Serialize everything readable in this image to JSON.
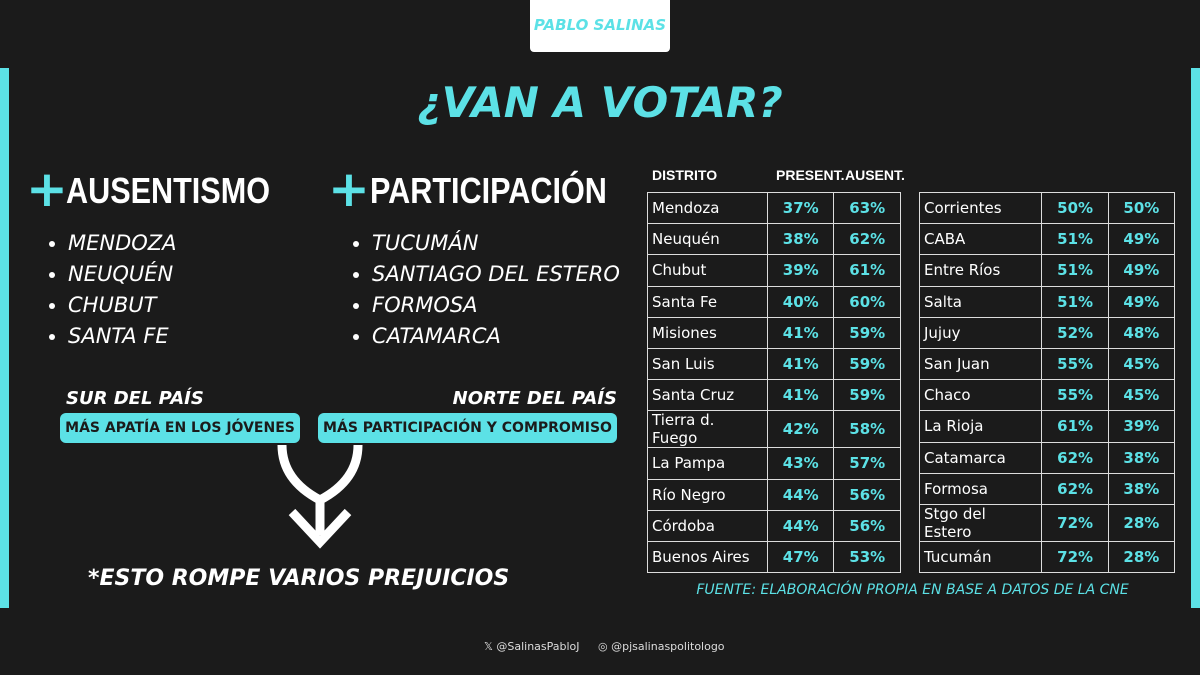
{
  "brand": "PABLO SALINAS",
  "title": "¿VAN A VOTAR?",
  "left": {
    "heading": "AUSENTISMO",
    "items": [
      "MENDOZA",
      "NEUQUÉN",
      "CHUBUT",
      "SANTA FE"
    ],
    "region": "SUR DEL PAÍS",
    "tag": "MÁS APATÍA EN LOS JÓVENES"
  },
  "right": {
    "heading": "PARTICIPACIÓN",
    "items": [
      "TUCUMÁN",
      "SANTIAGO DEL ESTERO",
      "FORMOSA",
      "CATAMARCA"
    ],
    "region": "NORTE DEL PAÍS",
    "tag": "MÁS PARTICIPACIÓN Y COMPROMISO"
  },
  "conclusion": "*ESTO ROMPE VARIOS PREJUICIOS",
  "table": {
    "headers": [
      "DISTRITO",
      "PRESENT.",
      "AUSENT."
    ],
    "left_rows": [
      [
        "Mendoza",
        "37%",
        "63%"
      ],
      [
        "Neuquén",
        "38%",
        "62%"
      ],
      [
        "Chubut",
        "39%",
        "61%"
      ],
      [
        "Santa Fe",
        "40%",
        "60%"
      ],
      [
        "Misiones",
        "41%",
        "59%"
      ],
      [
        "San Luis",
        "41%",
        "59%"
      ],
      [
        "Santa Cruz",
        "41%",
        "59%"
      ],
      [
        "Tierra d. Fuego",
        "42%",
        "58%"
      ],
      [
        "La Pampa",
        "43%",
        "57%"
      ],
      [
        "Río Negro",
        "44%",
        "56%"
      ],
      [
        "Córdoba",
        "44%",
        "56%"
      ],
      [
        "Buenos Aires",
        "47%",
        "53%"
      ]
    ],
    "right_rows": [
      [
        "Corrientes",
        "50%",
        "50%"
      ],
      [
        "CABA",
        "51%",
        "49%"
      ],
      [
        "Entre Ríos",
        "51%",
        "49%"
      ],
      [
        "Salta",
        "51%",
        "49%"
      ],
      [
        "Jujuy",
        "52%",
        "48%"
      ],
      [
        "San Juan",
        "55%",
        "45%"
      ],
      [
        "Chaco",
        "55%",
        "45%"
      ],
      [
        "La Rioja",
        "61%",
        "39%"
      ],
      [
        "Catamarca",
        "62%",
        "38%"
      ],
      [
        "Formosa",
        "62%",
        "38%"
      ],
      [
        "Stgo del Estero",
        "72%",
        "28%"
      ],
      [
        "Tucumán",
        "72%",
        "28%"
      ]
    ]
  },
  "source": "FUENTE: ELABORACIÓN PROPIA EN BASE A DATOS DE LA CNE",
  "social": [
    "@SalinasPabloJ",
    "@pjsalinaspolitologo"
  ]
}
